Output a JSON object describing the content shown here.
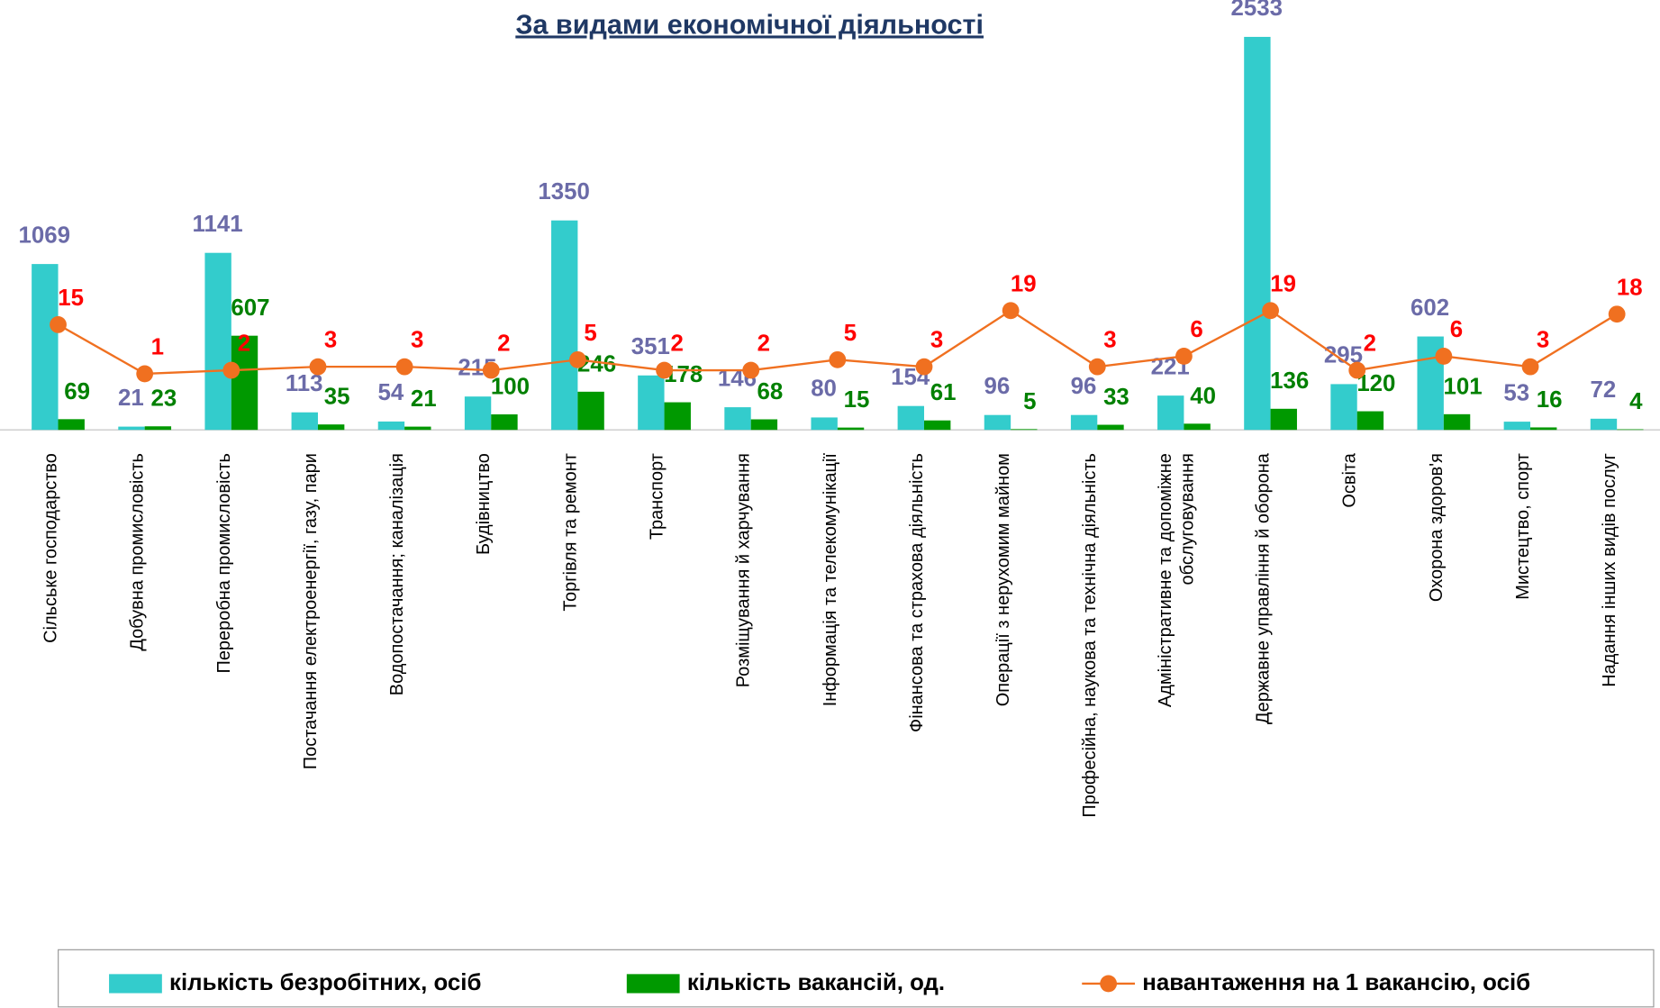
{
  "chart_data": {
    "type": "bar",
    "title": "За видами економічної діяльності",
    "categories": [
      "Сільське господарство",
      "Добувна промисловість",
      "Переробна промисловість",
      "Постачання електроенергії, газу, пари",
      "Водопостачання; каналізація",
      "Будівництво",
      "Торгівля та ремонт",
      "Транспорт",
      "Розміщування й харчування",
      "Інформація та телекомунікації",
      "Фінансова та страхова діяльність",
      "Операції з нерухомим майном",
      "Професійна, наукова та технічна діяльність",
      "Адміністративне та допоміжне\nобслуговування",
      "Державне управління й оборона",
      "Освіта",
      "Охорона здоров'я",
      "Мистецтво, спорт",
      "Надання інших видів послуг"
    ],
    "series": [
      {
        "name": "кількість безробітних, осіб",
        "type": "bar",
        "color": "#33CCCC",
        "label_color": "#6B6BA8",
        "values": [
          1069,
          21,
          1141,
          113,
          54,
          215,
          1350,
          351,
          146,
          80,
          154,
          96,
          96,
          221,
          2533,
          295,
          602,
          53,
          72
        ]
      },
      {
        "name": "кількість вакансій, од.",
        "type": "bar",
        "color": "#009900",
        "label_color": "#008000",
        "values": [
          69,
          23,
          607,
          35,
          21,
          100,
          246,
          178,
          68,
          15,
          61,
          5,
          33,
          40,
          136,
          120,
          101,
          16,
          4
        ]
      },
      {
        "name": "навантаження на 1 вакансію, осіб",
        "type": "line",
        "axis": "y2",
        "color": "#F07020",
        "label_color": "#FF0000",
        "values": [
          15,
          1,
          2,
          3,
          3,
          2,
          5,
          2,
          2,
          5,
          3,
          19,
          3,
          6,
          19,
          2,
          6,
          3,
          18
        ]
      }
    ],
    "ylim": [
      0,
      2600
    ],
    "y2lim": [
      -15,
      100
    ],
    "legend": "bottom"
  }
}
